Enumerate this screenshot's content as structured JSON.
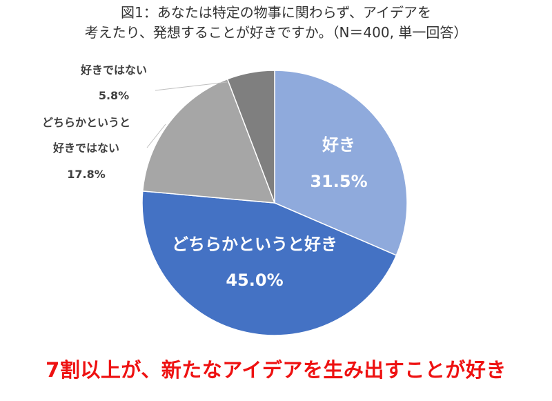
{
  "title": {
    "line1": "図1：あなたは特定の物事に関わらず、アイデアを",
    "line2": "考えたり、発想することが好きですか。（N＝400, 単一回答）"
  },
  "chart_data": {
    "type": "pie",
    "slices": [
      {
        "label": "好き",
        "label_lines": [
          "好き"
        ],
        "value": 31.5,
        "value_text": "31.5%",
        "color": "#8faadc",
        "placement": "inside"
      },
      {
        "label": "どちらかというと好き",
        "label_lines": [
          "どちらかというと好き"
        ],
        "value": 45.0,
        "value_text": "45.0%",
        "color": "#4472c4",
        "placement": "inside"
      },
      {
        "label": "どちらかというと好きではない",
        "label_lines": [
          "どちらかというと",
          "好きではない"
        ],
        "value": 17.8,
        "value_text": "17.8%",
        "color": "#a6a6a6",
        "placement": "outside"
      },
      {
        "label": "好きではない",
        "label_lines": [
          "好きではない"
        ],
        "value": 5.8,
        "value_text": "5.8%",
        "color": "#7f7f7f",
        "placement": "outside"
      }
    ],
    "start_angle_deg": 0,
    "direction": "clockwise"
  },
  "headline": "7割以上が、新たなアイデアを生み出すことが好き"
}
